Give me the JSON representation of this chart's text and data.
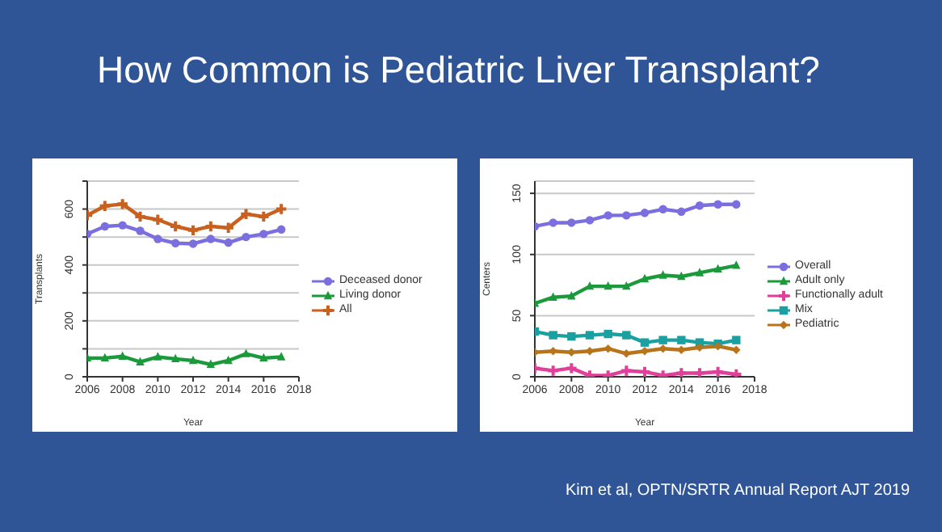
{
  "chart_data": [
    {
      "type": "line",
      "title": "How Common is Pediatric Liver Transplant?",
      "xlabel": "Year",
      "ylabel": "Transplants",
      "x": [
        2006,
        2007,
        2008,
        2009,
        2010,
        2011,
        2012,
        2013,
        2014,
        2015,
        2016,
        2017
      ],
      "xlim": [
        2006,
        2018
      ],
      "xticks": [
        2006,
        2008,
        2010,
        2012,
        2014,
        2016,
        2018
      ],
      "ylim": [
        0,
        700
      ],
      "yticks": [
        0,
        {
          "value": 100,
          "label": null
        },
        200,
        {
          "value": 300,
          "label": null
        },
        400,
        {
          "value": 500,
          "label": null
        },
        600,
        {
          "value": 700,
          "label": null
        }
      ],
      "grid": "y",
      "legend": "right",
      "series": [
        {
          "name": "Deceased donor",
          "color": "#7b6fe0",
          "marker": "circle",
          "values": [
            511,
            538,
            542,
            522,
            493,
            478,
            476,
            493,
            480,
            500,
            511,
            527
          ]
        },
        {
          "name": "Living donor",
          "color": "#1a9a3a",
          "marker": "triangle",
          "values": [
            67,
            67,
            73,
            53,
            71,
            64,
            58,
            44,
            58,
            82,
            67,
            71
          ]
        },
        {
          "name": "All",
          "color": "#c8601f",
          "marker": "cross",
          "values": [
            578,
            611,
            618,
            573,
            562,
            538,
            524,
            538,
            533,
            582,
            573,
            600
          ]
        }
      ]
    },
    {
      "type": "line",
      "xlabel": "Year",
      "ylabel": "Centers",
      "x": [
        2006,
        2007,
        2008,
        2009,
        2010,
        2011,
        2012,
        2013,
        2014,
        2015,
        2016,
        2017
      ],
      "xlim": [
        2006,
        2018
      ],
      "xticks": [
        2006,
        2008,
        2010,
        2012,
        2014,
        2016,
        2018
      ],
      "ylim": [
        0,
        160
      ],
      "yticks": [
        0,
        50,
        100,
        150
      ],
      "grid": "y",
      "legend": "right",
      "annotations": [
        "Kim et al, OPTN/SRTR Annual Report  AJT 2019"
      ],
      "series": [
        {
          "name": "Overall",
          "color": "#7b6fe0",
          "marker": "circle",
          "values": [
            123,
            126,
            126,
            128,
            132,
            132,
            134,
            137,
            135,
            140,
            141,
            141
          ]
        },
        {
          "name": "Adult only",
          "color": "#1a9a3a",
          "marker": "triangle",
          "values": [
            60,
            65,
            66,
            74,
            74,
            74,
            80,
            83,
            82,
            85,
            88,
            91
          ]
        },
        {
          "name": "Functionally adult",
          "color": "#e0409a",
          "marker": "cross",
          "values": [
            7,
            5,
            7,
            1,
            1,
            5,
            4,
            1,
            3,
            3,
            4,
            2
          ]
        },
        {
          "name": "Mix",
          "color": "#1aa0a0",
          "marker": "square",
          "values": [
            37,
            34,
            33,
            34,
            35,
            34,
            28,
            30,
            30,
            28,
            27,
            30
          ]
        },
        {
          "name": "Pediatric",
          "color": "#b8741a",
          "marker": "diamond",
          "values": [
            20,
            21,
            20,
            21,
            23,
            19,
            21,
            23,
            22,
            24,
            25,
            22
          ]
        }
      ]
    }
  ]
}
